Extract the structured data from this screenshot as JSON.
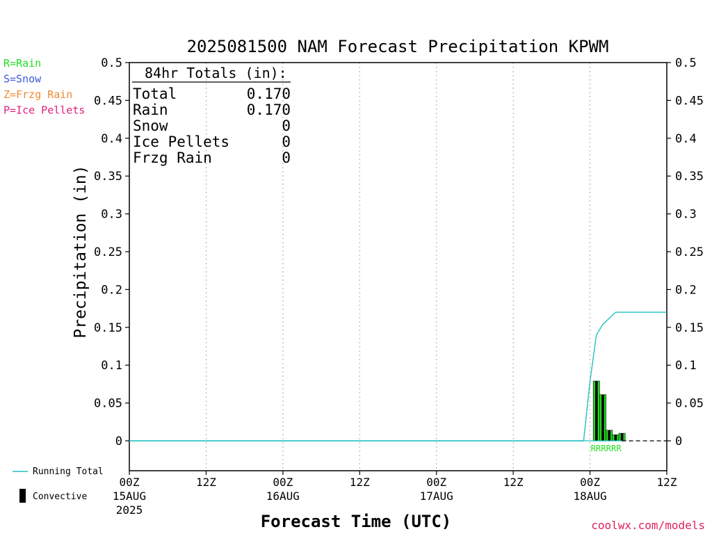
{
  "chart_data": {
    "type": "bar",
    "title": "2025081500 NAM Forecast Precipitation KPWM",
    "xlabel": "Forecast Time (UTC)",
    "ylabel": "Precipitation (in)",
    "ylim": [
      0,
      0.5
    ],
    "y_below_zero": -0.04,
    "y_ticks": [
      0,
      0.05,
      0.1,
      0.15,
      0.2,
      0.25,
      0.3,
      0.35,
      0.4,
      0.45,
      0.5
    ],
    "y_tick_labels": [
      "0",
      "0.05",
      "0.1",
      "0.15",
      "0.2",
      "0.25",
      "0.3",
      "0.35",
      "0.4",
      "0.45",
      "0.5"
    ],
    "xlim_hours": [
      0,
      84
    ],
    "x_ticks": [
      {
        "hour": 0,
        "label": "00Z",
        "date": "15AUG",
        "year": "2025"
      },
      {
        "hour": 12,
        "label": "12Z",
        "date": "",
        "year": ""
      },
      {
        "hour": 24,
        "label": "00Z",
        "date": "16AUG",
        "year": ""
      },
      {
        "hour": 36,
        "label": "12Z",
        "date": "",
        "year": ""
      },
      {
        "hour": 48,
        "label": "00Z",
        "date": "17AUG",
        "year": ""
      },
      {
        "hour": 60,
        "label": "12Z",
        "date": "",
        "year": ""
      },
      {
        "hour": 72,
        "label": "00Z",
        "date": "18AUG",
        "year": ""
      },
      {
        "hour": 84,
        "label": "12Z",
        "date": "",
        "year": ""
      }
    ],
    "grid_vertical": "dotted",
    "bars": [
      {
        "hour": 72,
        "total": 0.079,
        "convective": 0.079
      },
      {
        "hour": 73,
        "total": 0.061,
        "convective": 0.061
      },
      {
        "hour": 74,
        "total": 0.014,
        "convective": 0.014
      },
      {
        "hour": 75,
        "total": 0.008,
        "convective": 0.008
      },
      {
        "hour": 76,
        "total": 0.01,
        "convective": 0.01
      }
    ],
    "precip_type_marks": [
      {
        "hour": 72,
        "type": "R"
      },
      {
        "hour": 72.8,
        "type": "R"
      },
      {
        "hour": 73.6,
        "type": "R"
      },
      {
        "hour": 74.4,
        "type": "R"
      },
      {
        "hour": 75.2,
        "type": "R"
      },
      {
        "hour": 76,
        "type": "R"
      }
    ],
    "running_total": {
      "name": "Running Total",
      "x": [
        0,
        71,
        72,
        73,
        74,
        75,
        76,
        77,
        84
      ],
      "y": [
        0,
        0,
        0.079,
        0.14,
        0.154,
        0.162,
        0.17,
        0.17,
        0.17
      ]
    },
    "zero_line_dashed_from_hour": 77,
    "totals_box": {
      "header": "84hr Totals (in):",
      "rows": [
        {
          "label": "Total",
          "value": "0.170"
        },
        {
          "label": "Rain",
          "value": "0.170"
        },
        {
          "label": "Snow",
          "value": "0"
        },
        {
          "label": "Ice Pellets",
          "value": "0"
        },
        {
          "label": "Frzg Rain",
          "value": "0"
        }
      ]
    },
    "type_legend": [
      {
        "text": "R=Rain",
        "color": "#22dd22"
      },
      {
        "text": "S=Snow",
        "color": "#3b5bdb"
      },
      {
        "text": "Z=Frzg Rain",
        "color": "#f08a32"
      },
      {
        "text": "P=Ice Pellets",
        "color": "#e0207c"
      }
    ],
    "series_legend": {
      "running_total": "Running Total",
      "convective": "Convective"
    },
    "credit": "coolwx.com/models",
    "colors": {
      "rain": "#22dd22",
      "convective": "#000000",
      "running_total": "#20c0c0",
      "grid": "#aaaaaa",
      "credit": "#e0205a"
    }
  }
}
